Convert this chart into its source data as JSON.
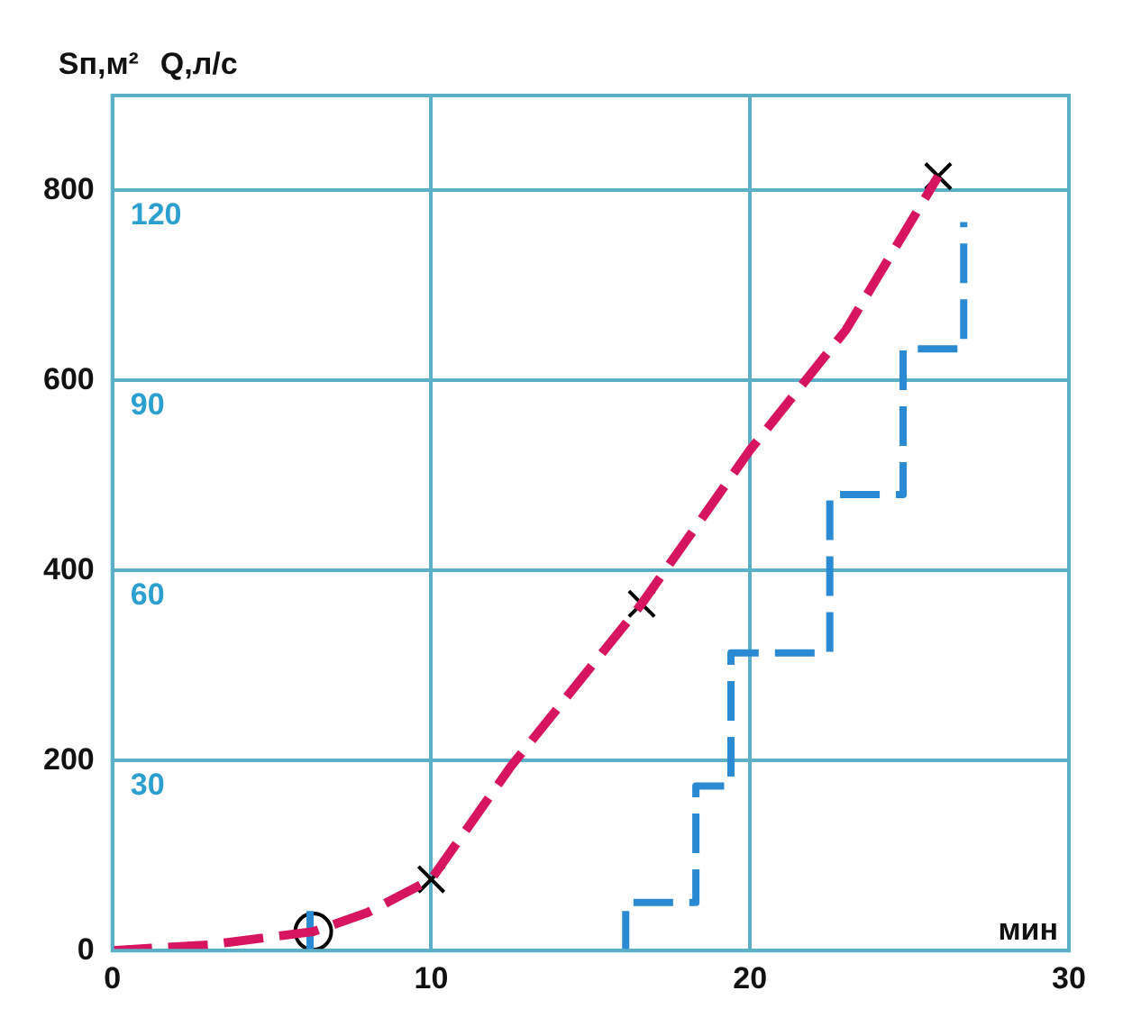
{
  "chart_data": {
    "type": "line",
    "ylabel": "Sп,м²",
    "y2label": "Q,л/с",
    "xlabel": "мин",
    "xlim": [
      0,
      30
    ],
    "xticks": [
      0,
      10,
      20,
      30
    ],
    "ylim": [
      0,
      900
    ],
    "yticks": [
      0,
      200,
      400,
      600,
      800
    ],
    "y2lim": [
      0,
      135
    ],
    "y2ticks": [
      30,
      60,
      90,
      120
    ],
    "grid": true,
    "legend": false,
    "series": [
      {
        "type": "line",
        "color": "#d6145f",
        "line_style": "dashed",
        "marker": "none",
        "x": [
          0,
          3,
          6.3,
          8,
          10,
          12.5,
          16.6,
          20,
          23,
          25.9
        ],
        "values": [
          0,
          6,
          20,
          40,
          75,
          194,
          365,
          527,
          653,
          815
        ]
      },
      {
        "type": "line",
        "axis": "y2",
        "color": "#2a8bd4",
        "line_style": "dashed",
        "marker": "none",
        "x": [
          6.2,
          6.2
        ],
        "values": [
          0,
          7
        ]
      },
      {
        "type": "line",
        "axis": "y2",
        "color": "#2a8bd4",
        "line_style": "dashed",
        "marker": "none",
        "x": [
          16.1,
          16.1,
          18.3,
          18.3,
          19.4,
          19.4,
          22.5,
          22.5,
          24.8,
          24.8,
          26.7,
          26.7
        ],
        "values": [
          0,
          7.6,
          7.6,
          26,
          26,
          47,
          47,
          72,
          72,
          95,
          95,
          115
        ]
      },
      {
        "type": "scatter",
        "color": "#000000",
        "marker": "cross",
        "x": [
          10,
          16.6,
          25.9
        ],
        "values": [
          75,
          365,
          815
        ]
      },
      {
        "type": "scatter",
        "color": "#000000",
        "marker": "circle",
        "x": [
          6.3
        ],
        "values": [
          20
        ]
      }
    ]
  }
}
